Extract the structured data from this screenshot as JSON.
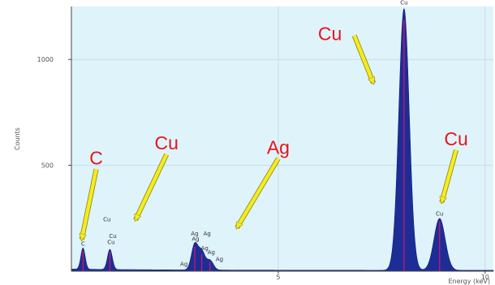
{
  "colors": {
    "plot_background": "#dff3fb",
    "spectrum_fill": "#1c2e96",
    "spectrum_stroke": "#0c1a78",
    "marker": "#e0106b",
    "arrow": "#f4ec22",
    "annotation_text": "#e8141b",
    "grid": "#c8dde6"
  },
  "chart_data": {
    "type": "area",
    "xlabel": "Energy (keV)",
    "ylabel": "Counts",
    "xlim": [
      0,
      10.2
    ],
    "ylim": [
      0,
      1250
    ],
    "x_ticks": [
      5,
      10
    ],
    "y_ticks": [
      500,
      1000
    ],
    "x_tick_labels": [
      "5",
      "10"
    ],
    "y_tick_labels": [
      "500",
      "1000"
    ],
    "grid": true,
    "peaks": [
      {
        "element": "C",
        "energy": 0.28,
        "counts": 100
      },
      {
        "element": "Cu",
        "energy": 0.93,
        "counts": 95
      },
      {
        "element": "Ag",
        "energy": 2.98,
        "counts": 120
      },
      {
        "element": "Ag",
        "energy": 3.15,
        "counts": 85
      },
      {
        "element": "Ag",
        "energy": 3.35,
        "counts": 45
      },
      {
        "element": "Cu",
        "energy": 8.04,
        "counts": 1235
      },
      {
        "element": "Cu",
        "energy": 8.9,
        "counts": 245
      }
    ],
    "peak_labels": [
      {
        "text": "C",
        "energy": 0.28,
        "counts": 120
      },
      {
        "text": "Cu",
        "energy": 0.86,
        "counts": 235
      },
      {
        "text": "Cu",
        "energy": 1.0,
        "counts": 158
      },
      {
        "text": "Cu",
        "energy": 0.96,
        "counts": 128
      },
      {
        "text": "Ag",
        "energy": 2.98,
        "counts": 168
      },
      {
        "text": "Ag",
        "energy": 3.28,
        "counts": 168
      },
      {
        "text": "Ag",
        "energy": 3.0,
        "counts": 143
      },
      {
        "text": "Ag",
        "energy": 3.22,
        "counts": 100
      },
      {
        "text": "Ag",
        "energy": 3.38,
        "counts": 80
      },
      {
        "text": "Ag",
        "energy": 3.58,
        "counts": 48
      },
      {
        "text": "Ag",
        "energy": 2.72,
        "counts": 25
      },
      {
        "text": "Cu",
        "energy": 8.04,
        "counts": 1260
      },
      {
        "text": "Cu",
        "energy": 8.9,
        "counts": 263
      }
    ],
    "annotations": [
      {
        "text": "C",
        "label_energy": 0.6,
        "label_counts": 505,
        "arrow_to_energy": 0.25,
        "arrow_to_counts": 150
      },
      {
        "text": "Cu",
        "label_energy": 2.3,
        "label_counts": 575,
        "arrow_to_energy": 1.55,
        "arrow_to_counts": 242
      },
      {
        "text": "Ag",
        "label_energy": 5.0,
        "label_counts": 555,
        "arrow_to_energy": 4.0,
        "arrow_to_counts": 205
      },
      {
        "text": "Cu",
        "label_energy": 6.25,
        "label_counts": 1090,
        "arrow_to_energy": 7.3,
        "arrow_to_counts": 888
      },
      {
        "text": "Cu",
        "label_energy": 9.3,
        "label_counts": 595,
        "arrow_to_energy": 8.95,
        "arrow_to_counts": 325
      }
    ]
  }
}
